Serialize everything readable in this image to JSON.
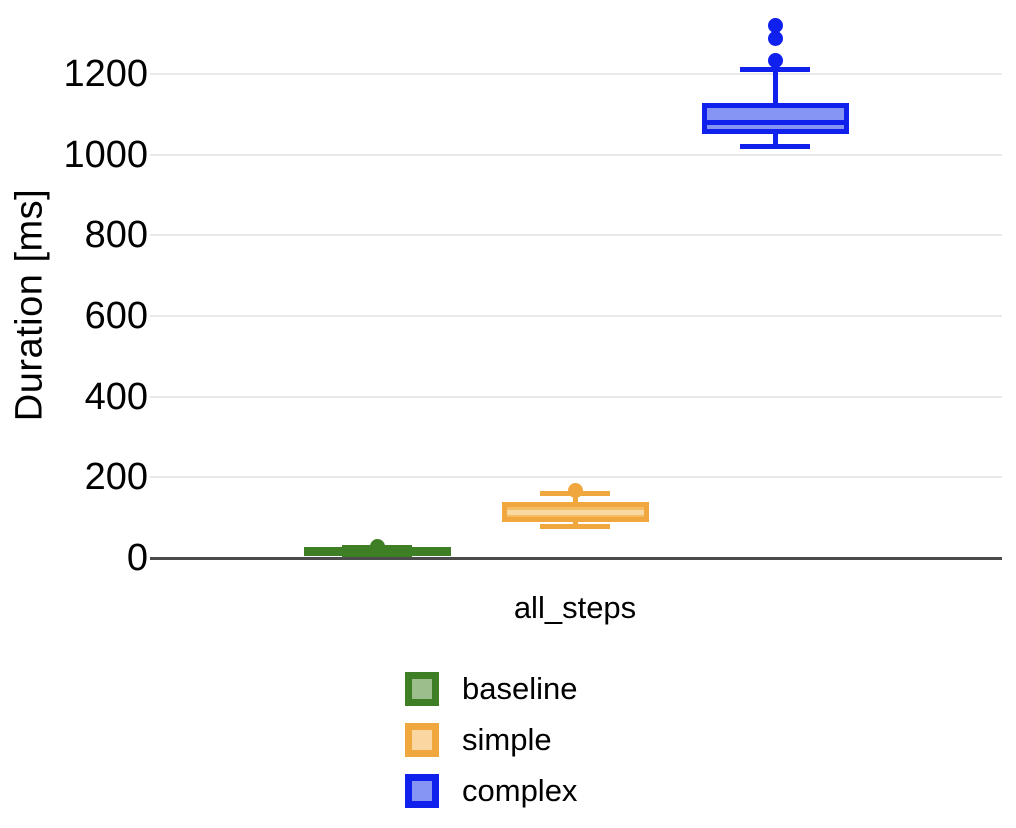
{
  "chart_data": {
    "type": "boxplot",
    "title": "",
    "ylabel": "Duration [ms]",
    "xlabel": "",
    "unit": "ms",
    "categories": [
      "all_steps"
    ],
    "y_ticks": [
      0,
      200,
      400,
      600,
      800,
      1000,
      1200
    ],
    "ylim": [
      0,
      1380
    ],
    "grid": "horizontal-light",
    "legend_position": "bottom-center",
    "colors": {
      "grid": "#e9e9e9",
      "axis": "#4b4b4b",
      "text": "#000000",
      "background": "#ffffff"
    },
    "series": [
      {
        "name": "baseline",
        "stroke": "#3E7F25",
        "fill": "#9CBE8C",
        "legend_fill": "#9CBE8C",
        "median_color": "#3E7F25",
        "stats": {
          "whisker_low": 7,
          "q1": 10,
          "median": 15,
          "q3": 20,
          "whisker_high": 25,
          "outliers": [
            28
          ]
        }
      },
      {
        "name": "simple",
        "stroke": "#EFA73E",
        "fill": "#F5BC63",
        "legend_fill": "#FAD7A0",
        "median_color": "#F9D9A2",
        "stats": {
          "whisker_low": 77,
          "q1": 95,
          "median": 112,
          "q3": 132,
          "whisker_high": 159,
          "outliers": [
            168
          ]
        }
      },
      {
        "name": "complex",
        "stroke": "#1021EE",
        "fill": "#8694F4",
        "legend_fill": "#8694F4",
        "median_color": "#1021EE",
        "stats": {
          "whisker_low": 1020,
          "q1": 1057,
          "median": 1079,
          "q3": 1121,
          "whisker_high": 1210,
          "outliers": [
            1233,
            1288,
            1320
          ]
        }
      }
    ]
  }
}
